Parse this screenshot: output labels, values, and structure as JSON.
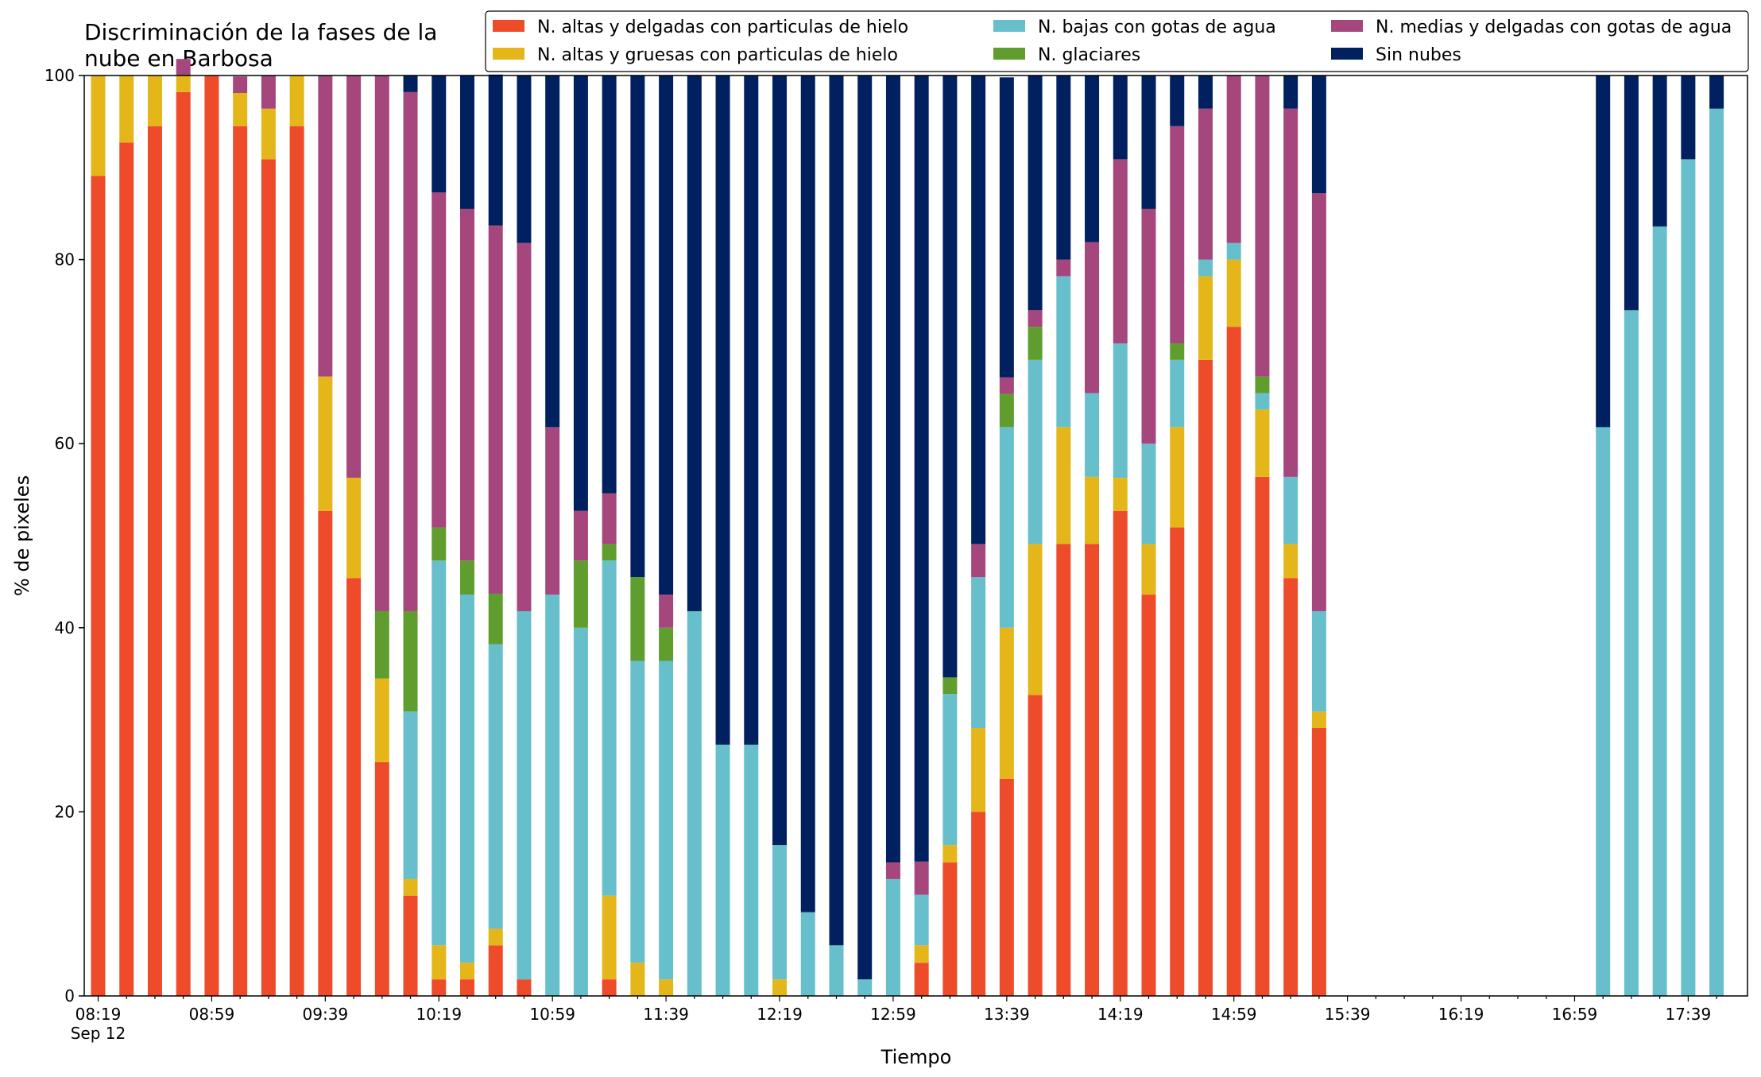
{
  "chart_data": {
    "type": "bar",
    "stacked": true,
    "title": "Discriminación de la fases de la\nnube en Barbosa",
    "xlabel": "Tiempo",
    "ylabel": "% de pixeles",
    "ylim": [
      0,
      100
    ],
    "yticks": [
      0,
      20,
      40,
      60,
      80,
      100
    ],
    "x_tick_labels": [
      "08:19\nSep 12",
      "08:59",
      "09:39",
      "10:19",
      "10:59",
      "11:39",
      "12:19",
      "12:59",
      "13:39",
      "14:19",
      "14:59",
      "15:39",
      "16:19",
      "16:59",
      "17:39"
    ],
    "legend_position": "top-right",
    "grid": false,
    "categories": [
      "08:19",
      "08:29",
      "08:39",
      "08:49",
      "08:59",
      "09:09",
      "09:19",
      "09:29",
      "09:39",
      "09:49",
      "09:59",
      "10:09",
      "10:19",
      "10:29",
      "10:39",
      "10:49",
      "10:59",
      "11:09",
      "11:19",
      "11:29",
      "11:39",
      "11:49",
      "11:59",
      "12:09",
      "12:19",
      "12:29",
      "12:39",
      "12:49",
      "12:59",
      "13:09",
      "13:19",
      "13:29",
      "13:39",
      "13:49",
      "13:59",
      "14:09",
      "14:19",
      "14:29",
      "14:39",
      "14:49",
      "14:59",
      "15:09",
      "15:19",
      "15:29",
      "15:39",
      "15:49",
      "15:59",
      "16:09",
      "16:19",
      "16:29",
      "16:39",
      "16:49",
      "16:59",
      "17:09",
      "17:19",
      "17:29",
      "17:39",
      "17:49"
    ],
    "series": [
      {
        "name": "N. altas y delgadas con particulas de hielo",
        "color": "#ee4b2b",
        "values": [
          89.1,
          92.7,
          94.5,
          98.2,
          100,
          94.5,
          90.9,
          94.5,
          52.7,
          45.4,
          25.4,
          10.9,
          1.8,
          1.8,
          5.5,
          1.8,
          0,
          0,
          1.8,
          0,
          0,
          0,
          0,
          0,
          0,
          0,
          0,
          0,
          0,
          3.6,
          14.5,
          20,
          23.6,
          32.7,
          49.1,
          49.1,
          52.7,
          43.6,
          50.9,
          69.1,
          72.7,
          56.4,
          45.4,
          29.1,
          0,
          0,
          0,
          0,
          0,
          0,
          0,
          0,
          0,
          0,
          0,
          0,
          0,
          0
        ]
      },
      {
        "name": "N. altas y gruesas con particulas de hielo",
        "color": "#e5b61a",
        "values": [
          10.9,
          7.3,
          5.5,
          1.8,
          0,
          3.6,
          5.5,
          5.5,
          14.6,
          10.9,
          9.1,
          1.8,
          3.7,
          1.8,
          1.8,
          0,
          0,
          0,
          9.1,
          3.6,
          1.8,
          0,
          0,
          0,
          1.8,
          0,
          0,
          0,
          0,
          1.9,
          1.9,
          9.1,
          16.4,
          16.4,
          12.7,
          7.3,
          3.6,
          5.5,
          10.9,
          9.1,
          7.3,
          7.3,
          3.7,
          1.8,
          0,
          0,
          0,
          0,
          0,
          0,
          0,
          0,
          0,
          0,
          0,
          0,
          0,
          0
        ]
      },
      {
        "name": "N. bajas con gotas de agua",
        "color": "#67bfcb",
        "values": [
          0,
          0,
          0,
          0,
          0,
          0,
          0,
          0,
          0,
          0,
          0,
          18.2,
          41.8,
          40,
          30.9,
          40,
          43.6,
          40,
          36.4,
          32.8,
          34.6,
          41.8,
          27.3,
          27.3,
          14.6,
          9.1,
          5.5,
          1.8,
          12.7,
          5.5,
          16.4,
          16.4,
          21.8,
          20,
          16.4,
          9.1,
          14.6,
          10.9,
          7.3,
          1.8,
          1.8,
          1.8,
          7.3,
          10.9,
          0,
          0,
          0,
          0,
          0,
          0,
          0,
          0,
          0,
          61.8,
          74.5,
          83.6,
          90.9,
          96.4
        ]
      },
      {
        "name": "N. glaciares",
        "color": "#5f9e2e",
        "values": [
          0,
          0,
          0,
          0,
          0,
          0,
          0,
          0,
          0,
          0,
          7.3,
          10.9,
          3.6,
          3.7,
          5.5,
          0,
          0,
          7.3,
          1.8,
          9.1,
          3.6,
          0,
          0,
          0,
          0,
          0,
          0,
          0,
          0,
          0,
          1.8,
          0,
          3.6,
          3.6,
          0,
          0,
          0,
          0,
          1.8,
          0,
          0,
          1.8,
          0,
          0,
          0,
          0,
          0,
          0,
          0,
          0,
          0,
          0,
          0,
          0,
          0,
          0,
          0,
          0
        ]
      },
      {
        "name": "N. medias y delgadas con gotas de agua",
        "color": "#a5467c",
        "values": [
          0,
          0,
          0,
          1.8,
          0,
          1.8,
          3.6,
          0,
          32.7,
          43.7,
          58.2,
          56.4,
          36.4,
          38.2,
          40,
          40,
          18.2,
          5.4,
          5.5,
          0,
          3.6,
          0,
          0,
          0,
          0,
          0,
          0,
          0,
          1.8,
          3.6,
          0,
          3.6,
          1.8,
          1.8,
          1.8,
          16.4,
          20,
          25.5,
          23.6,
          16.4,
          18.2,
          32.7,
          40,
          45.4,
          0,
          0,
          0,
          0,
          0,
          0,
          0,
          0,
          0,
          0,
          0,
          0,
          0,
          0
        ]
      },
      {
        "name": "Sin nubes",
        "color": "#002060",
        "values": [
          0,
          0,
          0,
          0,
          0,
          0,
          0,
          0,
          0,
          0,
          0,
          1.8,
          12.7,
          14.5,
          16.4,
          18.2,
          38.2,
          47.3,
          45.4,
          54.5,
          56.4,
          58.2,
          72.7,
          72.7,
          83.6,
          90.9,
          94.5,
          98.2,
          85.5,
          85.4,
          65.4,
          50.9,
          32.6,
          25.5,
          20,
          18.1,
          9.1,
          14.5,
          5.5,
          3.6,
          0,
          0,
          3.6,
          12.8,
          0,
          0,
          0,
          0,
          0,
          0,
          0,
          0,
          0,
          38.2,
          25.5,
          16.4,
          9.1,
          3.6
        ]
      }
    ]
  }
}
